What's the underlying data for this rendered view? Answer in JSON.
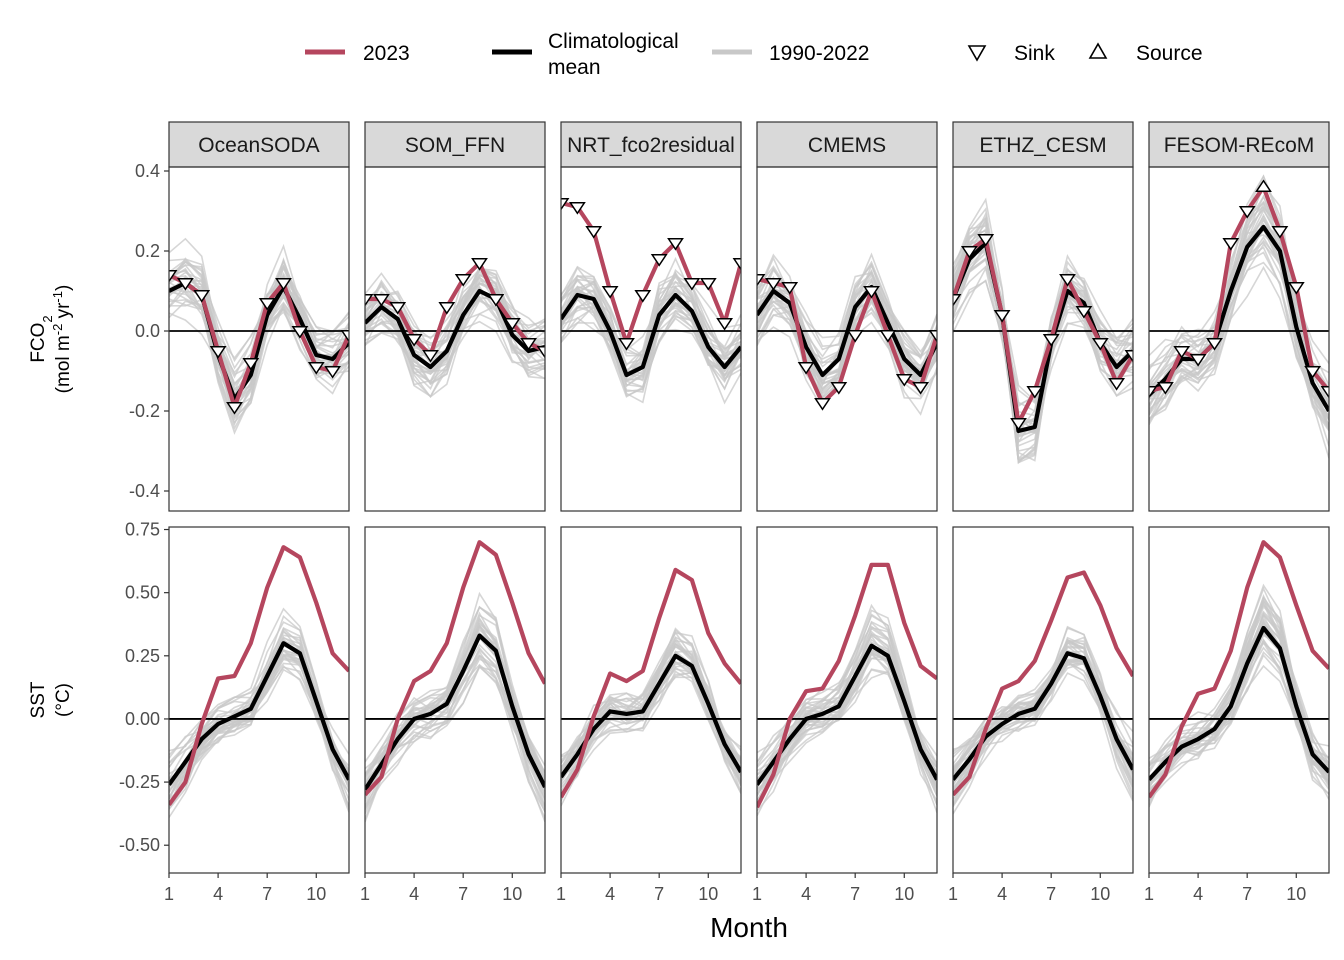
{
  "legend": {
    "items": [
      {
        "key": "y2023",
        "label": "2023",
        "kind": "line",
        "color": "#b5465e"
      },
      {
        "key": "clim",
        "label_lines": [
          "Climatological",
          "mean"
        ],
        "kind": "line",
        "color": "#000000"
      },
      {
        "key": "hist",
        "label": "1990-2022",
        "kind": "line",
        "color": "#c8c8c8"
      },
      {
        "key": "sink",
        "label": "Sink",
        "kind": "marker",
        "symbol": "triangle-down"
      },
      {
        "key": "source",
        "label": "Source",
        "kind": "marker",
        "symbol": "triangle-up"
      }
    ]
  },
  "colors": {
    "y2023": "#b5465e",
    "clim": "#000000",
    "hist": "#c8c8c8",
    "strip_bg": "#d9d9d9"
  },
  "panels": [
    "OceanSODA",
    "SOM_FFN",
    "NRT_fco2residual",
    "CMEMS",
    "ETHZ_CESM",
    "FESOM-REcoM"
  ],
  "x_axis": {
    "title": "Month",
    "ticks": [
      1,
      4,
      7,
      10
    ],
    "ticklabels": [
      "1",
      "4",
      "7",
      "10"
    ],
    "range": [
      1,
      12
    ]
  },
  "rows": [
    {
      "key": "fco2",
      "ylabel_html": [
        "FCO<tspan baseline-shift='sub' font-size='13'>2</tspan>",
        "(mol m<tspan baseline-shift='super' font-size='13'>-2</tspan> yr<tspan baseline-shift='super' font-size='13'>-1</tspan>)"
      ],
      "ylim": [
        -0.45,
        0.41
      ],
      "ticks": [
        -0.4,
        -0.2,
        0.0,
        0.2,
        0.4
      ],
      "ticklabels": [
        "-0.4",
        "-0.2",
        "0.0",
        "0.2",
        "0.4"
      ]
    },
    {
      "key": "sst",
      "ylabel_html": [
        "SST",
        "(°C)"
      ],
      "ylim": [
        -0.61,
        0.76
      ],
      "ticks": [
        -0.5,
        -0.25,
        0.0,
        0.25,
        0.5,
        0.75
      ],
      "ticklabels": [
        "-0.50",
        "-0.25",
        "0.00",
        "0.25",
        "0.50",
        "0.75"
      ]
    }
  ],
  "chart_data": {
    "type": "line",
    "x": [
      1,
      2,
      3,
      4,
      5,
      6,
      7,
      8,
      9,
      10,
      11,
      12
    ],
    "xlabel": "Month",
    "series_meta": [
      {
        "name": "2023",
        "color": "#b5465e"
      },
      {
        "name": "Climatological mean",
        "color": "#000000"
      },
      {
        "name": "1990-2022",
        "color": "#c8c8c8"
      }
    ],
    "fco2": {
      "OceanSODA": {
        "y2023": [
          0.14,
          0.12,
          0.09,
          -0.05,
          -0.19,
          -0.08,
          0.07,
          0.12,
          0.0,
          -0.09,
          -0.1,
          -0.01
        ],
        "clim": [
          0.1,
          0.12,
          0.09,
          -0.06,
          -0.17,
          -0.11,
          0.04,
          0.11,
          0.03,
          -0.06,
          -0.07,
          -0.03
        ],
        "markers": [
          "sink",
          "sink",
          "sink",
          "sink",
          "sink",
          "sink",
          "sink",
          "sink",
          "sink",
          "sink",
          "sink",
          "sink"
        ]
      },
      "SOM_FFN": {
        "y2023": [
          0.08,
          0.08,
          0.06,
          -0.02,
          -0.06,
          0.06,
          0.13,
          0.17,
          0.08,
          0.02,
          -0.03,
          -0.05
        ],
        "clim": [
          0.02,
          0.06,
          0.03,
          -0.06,
          -0.09,
          -0.05,
          0.04,
          0.1,
          0.08,
          -0.01,
          -0.05,
          -0.04
        ],
        "markers": [
          "sink",
          "sink",
          "sink",
          "sink",
          "sink",
          "sink",
          "sink",
          "sink",
          "sink",
          "sink",
          "sink",
          "sink"
        ]
      },
      "NRT_fco2residual": {
        "y2023": [
          0.32,
          0.31,
          0.25,
          0.1,
          -0.03,
          0.09,
          0.18,
          0.22,
          0.12,
          0.12,
          0.02,
          0.17
        ],
        "clim": [
          0.03,
          0.09,
          0.08,
          0.0,
          -0.11,
          -0.09,
          0.04,
          0.09,
          0.05,
          -0.04,
          -0.09,
          -0.04
        ],
        "markers": [
          "sink",
          "sink",
          "sink",
          "sink",
          "sink",
          "sink",
          "sink",
          "sink",
          "sink",
          "sink",
          "sink",
          "sink"
        ]
      },
      "CMEMS": {
        "y2023": [
          0.13,
          0.12,
          0.11,
          -0.09,
          -0.18,
          -0.14,
          -0.01,
          0.1,
          -0.01,
          -0.12,
          -0.14,
          -0.01
        ],
        "clim": [
          0.04,
          0.1,
          0.07,
          -0.04,
          -0.11,
          -0.07,
          0.06,
          0.11,
          0.02,
          -0.07,
          -0.11,
          -0.03
        ],
        "markers": [
          "sink",
          "sink",
          "sink",
          "sink",
          "sink",
          "sink",
          "sink",
          "sink",
          "sink",
          "sink",
          "sink",
          "sink"
        ]
      },
      "ETHZ_CESM": {
        "y2023": [
          0.08,
          0.2,
          0.23,
          0.04,
          -0.23,
          -0.15,
          -0.02,
          0.13,
          0.05,
          -0.03,
          -0.13,
          -0.06
        ],
        "clim": [
          0.08,
          0.18,
          0.22,
          0.04,
          -0.25,
          -0.24,
          -0.03,
          0.1,
          0.07,
          -0.03,
          -0.09,
          -0.05
        ],
        "markers": [
          "sink",
          "sink",
          "sink",
          "sink",
          "sink",
          "sink",
          "sink",
          "sink",
          "sink",
          "sink",
          "sink",
          "sink"
        ]
      },
      "FESOM-REcoM": {
        "y2023": [
          -0.15,
          -0.14,
          -0.05,
          -0.07,
          -0.03,
          0.22,
          0.3,
          0.36,
          0.25,
          0.11,
          -0.1,
          -0.15
        ],
        "clim": [
          -0.16,
          -0.12,
          -0.07,
          -0.07,
          -0.03,
          0.1,
          0.21,
          0.26,
          0.2,
          0.01,
          -0.13,
          -0.2
        ],
        "markers": [
          "sink",
          "sink",
          "sink",
          "sink",
          "sink",
          "sink",
          "sink",
          "source",
          "sink",
          "sink",
          "sink",
          "sink"
        ]
      }
    },
    "sst": {
      "OceanSODA": {
        "y2023": [
          -0.34,
          -0.25,
          -0.02,
          0.16,
          0.17,
          0.3,
          0.52,
          0.68,
          0.64,
          0.46,
          0.26,
          0.19
        ],
        "clim": [
          -0.26,
          -0.17,
          -0.08,
          -0.02,
          0.01,
          0.04,
          0.17,
          0.3,
          0.26,
          0.07,
          -0.12,
          -0.24
        ]
      },
      "SOM_FFN": {
        "y2023": [
          -0.3,
          -0.23,
          0.0,
          0.15,
          0.19,
          0.3,
          0.52,
          0.7,
          0.65,
          0.46,
          0.26,
          0.14
        ],
        "clim": [
          -0.28,
          -0.18,
          -0.08,
          0.0,
          0.02,
          0.06,
          0.19,
          0.33,
          0.27,
          0.05,
          -0.14,
          -0.27
        ]
      },
      "NRT_fco2residual": {
        "y2023": [
          -0.31,
          -0.2,
          0.01,
          0.18,
          0.15,
          0.19,
          0.4,
          0.59,
          0.55,
          0.34,
          0.22,
          0.14
        ],
        "clim": [
          -0.23,
          -0.14,
          -0.04,
          0.03,
          0.02,
          0.03,
          0.14,
          0.25,
          0.21,
          0.06,
          -0.1,
          -0.21
        ]
      },
      "CMEMS": {
        "y2023": [
          -0.35,
          -0.22,
          0.0,
          0.11,
          0.12,
          0.23,
          0.41,
          0.61,
          0.61,
          0.38,
          0.21,
          0.16
        ],
        "clim": [
          -0.26,
          -0.17,
          -0.08,
          0.0,
          0.02,
          0.05,
          0.17,
          0.29,
          0.25,
          0.07,
          -0.12,
          -0.24
        ]
      },
      "ETHZ_CESM": {
        "y2023": [
          -0.3,
          -0.23,
          -0.04,
          0.12,
          0.15,
          0.23,
          0.39,
          0.56,
          0.58,
          0.45,
          0.28,
          0.17
        ],
        "clim": [
          -0.24,
          -0.16,
          -0.07,
          -0.02,
          0.02,
          0.04,
          0.14,
          0.26,
          0.24,
          0.09,
          -0.08,
          -0.2
        ]
      },
      "FESOM-REcoM": {
        "y2023": [
          -0.31,
          -0.22,
          -0.03,
          0.1,
          0.12,
          0.27,
          0.52,
          0.7,
          0.64,
          0.45,
          0.27,
          0.2
        ],
        "clim": [
          -0.24,
          -0.17,
          -0.11,
          -0.08,
          -0.04,
          0.05,
          0.22,
          0.36,
          0.28,
          0.05,
          -0.14,
          -0.21
        ]
      }
    }
  }
}
